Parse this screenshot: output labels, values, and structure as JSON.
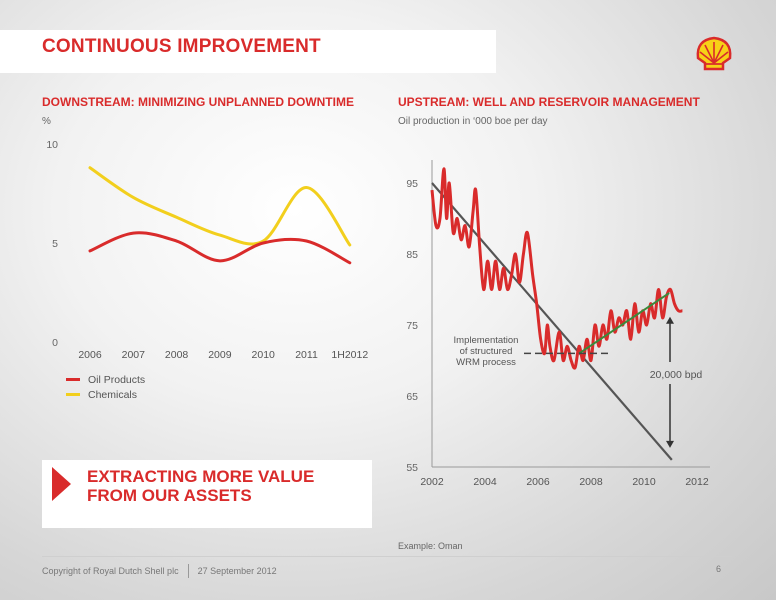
{
  "header": {
    "title": "CONTINUOUS IMPROVEMENT"
  },
  "left": {
    "title": "DOWNSTREAM: MINIMIZING UNPLANNED DOWNTIME",
    "unit": "%"
  },
  "right": {
    "title": "UPSTREAM: WELL AND RESERVOIR MANAGEMENT",
    "unit": "Oil production in ‘000 boe per day",
    "annotation_lines": [
      "Implementation",
      "of structured",
      "WRM process"
    ],
    "gap_label": "20,000 bpd"
  },
  "callout": {
    "text": "EXTRACTING MORE VALUE\nFROM OUR ASSETS"
  },
  "example": "Example: Oman",
  "footer": {
    "copyright": "Copyright of Royal Dutch Shell plc",
    "date": "27 September 2012",
    "page": "6"
  },
  "colors": {
    "red": "#d92b2b",
    "yellow": "#f2cf1d",
    "grey_line": "#555555",
    "green": "#3a8a3a"
  },
  "logo_icon": "shell-pecten-icon",
  "chart_data": [
    {
      "type": "line",
      "title": "DOWNSTREAM: MINIMIZING UNPLANNED DOWNTIME",
      "ylabel": "%",
      "categories": [
        "2006",
        "2007",
        "2008",
        "2009",
        "2010",
        "2011",
        "1H2012"
      ],
      "yticks": [
        "0",
        "5",
        "10"
      ],
      "ylim": [
        0,
        10
      ],
      "legend": "bottom-left",
      "series": [
        {
          "name": "Oil Products",
          "color": "#d92b2b",
          "values": [
            4.6,
            5.5,
            5.1,
            4.1,
            5.0,
            5.1,
            4.0
          ]
        },
        {
          "name": "Chemicals",
          "color": "#f2cf1d",
          "values": [
            8.8,
            7.3,
            6.3,
            5.4,
            5.1,
            7.8,
            4.9
          ]
        }
      ]
    },
    {
      "type": "line",
      "title": "UPSTREAM: WELL AND RESERVOIR MANAGEMENT",
      "ylabel": "Oil production in ‘000 boe per day",
      "xticks": [
        "2002",
        "2004",
        "2006",
        "2008",
        "2010",
        "2012"
      ],
      "yticks": [
        "55",
        "65",
        "75",
        "85",
        "95"
      ],
      "xlim": [
        2002,
        2012
      ],
      "ylim": [
        55,
        100
      ],
      "grid": false,
      "series": [
        {
          "name": "Oil production",
          "color": "#d92b2b",
          "x": [
            2002.0,
            2002.15,
            2002.3,
            2002.45,
            2002.55,
            2002.65,
            2002.8,
            2002.95,
            2003.1,
            2003.25,
            2003.4,
            2003.55,
            2003.65,
            2003.8,
            2003.95,
            2004.1,
            2004.25,
            2004.4,
            2004.55,
            2004.7,
            2004.85,
            2005.0,
            2005.15,
            2005.3,
            2005.45,
            2005.6,
            2005.8,
            2005.95,
            2006.1,
            2006.25,
            2006.35,
            2006.45,
            2006.6,
            2006.8,
            2006.95,
            2007.1,
            2007.25,
            2007.4,
            2007.55,
            2007.7,
            2007.85,
            2008.0,
            2008.15,
            2008.3,
            2008.45,
            2008.6,
            2008.75,
            2008.9,
            2009.05,
            2009.2,
            2009.35,
            2009.5,
            2009.65,
            2009.8,
            2009.95,
            2010.1,
            2010.25,
            2010.4,
            2010.55,
            2010.7,
            2010.85,
            2011.0,
            2011.15,
            2011.3,
            2011.45
          ],
          "values": [
            94,
            89,
            90,
            97,
            90,
            95,
            88,
            90,
            87,
            89,
            86,
            91,
            94,
            86,
            80,
            84,
            80,
            84,
            80,
            83,
            80,
            82,
            85,
            81,
            85,
            88,
            82,
            78,
            73,
            71,
            75,
            72,
            70,
            74,
            70,
            72,
            70,
            69,
            72,
            70,
            73,
            70,
            75,
            72,
            75,
            73,
            77,
            74,
            76,
            75,
            77,
            73,
            78,
            74,
            77,
            75,
            78,
            76,
            80,
            76,
            79,
            80,
            78,
            77,
            77
          ]
        },
        {
          "name": "Decline trend",
          "color": "#555555",
          "x": [
            2002,
            2011.05
          ],
          "values": [
            95,
            56
          ]
        },
        {
          "name": "Improvement trend",
          "color": "#3a8a3a",
          "x": [
            2007.55,
            2010.95
          ],
          "values": [
            71,
            79.5
          ]
        }
      ],
      "annotations": [
        {
          "text": "Implementation of structured WRM process",
          "x": 2007.5,
          "y": 71
        },
        {
          "text": "20,000 bpd",
          "x": 2010.95,
          "y_from": 56,
          "y_to": 77
        }
      ]
    }
  ]
}
